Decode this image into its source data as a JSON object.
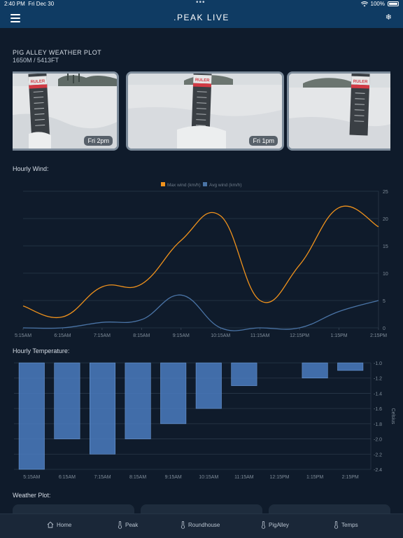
{
  "status_bar": {
    "time": "2:40 PM",
    "date": "Fri Dec 30",
    "battery": "100%",
    "icons": [
      "wifi-icon",
      "battery-icon"
    ]
  },
  "nav": {
    "title": ".PEAK LIVE",
    "menu_icon": "hamburger-icon",
    "right_icon": "snowflake-icon",
    "right_glyph": "❄"
  },
  "location": {
    "title": "PIG ALLEY WEATHER PLOT",
    "elevation": "1650M / 5413FT"
  },
  "cameras": [
    {
      "label": "Fri 2pm"
    },
    {
      "label": "Fri 1pm"
    },
    {
      "label": ""
    }
  ],
  "camera_scene": {
    "ruler_text": "RULER"
  },
  "sections": {
    "wind": "Hourly Wind:",
    "temperature": "Hourly Temperature:",
    "weather_plot": "Weather Plot:"
  },
  "colors": {
    "background": "#0f1b2b",
    "nav": "#0f3b63",
    "max_wind": "#f0921c",
    "avg_wind": "#4a74a6",
    "temp_bar": "#4a7bc0"
  },
  "chart_data": [
    {
      "type": "line",
      "title": "",
      "x": [
        "5:15AM",
        "6:15AM",
        "7:15AM",
        "8:15AM",
        "9:15AM",
        "10:15AM",
        "11:15AM",
        "12:15PM",
        "1:15PM",
        "2:15PM"
      ],
      "series": [
        {
          "name": "Max wind (km/h)",
          "values": [
            4,
            2,
            7.5,
            8,
            16,
            20.5,
            5,
            11.5,
            22,
            18.5
          ]
        },
        {
          "name": "Avg wind (km/h)",
          "values": [
            0,
            0,
            1,
            1.5,
            6,
            0,
            0,
            0,
            3,
            5
          ]
        }
      ],
      "ylim": [
        0,
        25
      ],
      "yticks": [
        0,
        5,
        10,
        15,
        20,
        25
      ],
      "y_axis_side": "right",
      "grid": true,
      "legend": "top-center"
    },
    {
      "type": "bar",
      "title": "",
      "categories": [
        "5:15AM",
        "6:15AM",
        "7:15AM",
        "8:15AM",
        "9:15AM",
        "10:15AM",
        "11:15AM",
        "12:15PM",
        "1:15PM",
        "2:15PM"
      ],
      "values": [
        -2.4,
        -2.0,
        -2.2,
        -2.0,
        -1.8,
        -1.6,
        -1.3,
        null,
        -1.2,
        -1.1
      ],
      "ylabel": "Celsius",
      "ylim": [
        -2.4,
        -1.0
      ],
      "yticks": [
        -1.0,
        -1.2,
        -1.4,
        -1.6,
        -1.8,
        -2.0,
        -2.2,
        -2.4
      ],
      "y_axis_side": "right",
      "grid": true
    }
  ],
  "tabs": [
    {
      "label": "Home",
      "icon": "home-icon"
    },
    {
      "label": "Peak",
      "icon": "thermometer-icon"
    },
    {
      "label": "Roundhouse",
      "icon": "thermometer-icon"
    },
    {
      "label": "PigAlley",
      "icon": "thermometer-icon"
    },
    {
      "label": "Temps",
      "icon": "thermometer-icon"
    }
  ]
}
